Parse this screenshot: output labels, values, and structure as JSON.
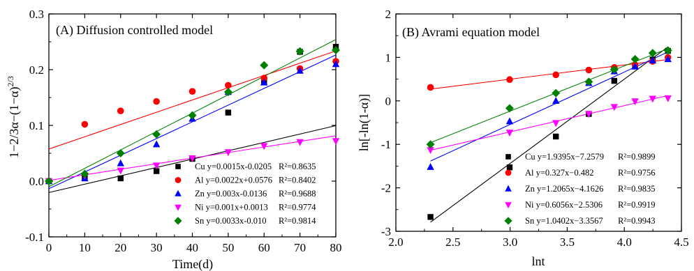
{
  "chart_data": [
    {
      "type": "scatter",
      "title": "(A) Diffusion controlled model",
      "xlabel": "Time(d)",
      "ylabel": "1−2/3α−(1−α)",
      "ylabel_sup": "2/3",
      "xlim": [
        0,
        80
      ],
      "ylim": [
        -0.1,
        0.3
      ],
      "xticks": [
        "0",
        "10",
        "20",
        "30",
        "40",
        "50",
        "60",
        "70",
        "80"
      ],
      "yticks": [
        "-0.1",
        "0.0",
        "0.1",
        "0.2",
        "0.3"
      ],
      "legend_position": "bottom-right",
      "series": [
        {
          "name": "Cu",
          "eq": "y=0.0015x-0.0205",
          "r2": "R²=0.8635",
          "color": "#000000",
          "marker": "square",
          "x": [
            0,
            10,
            20,
            30,
            40,
            50,
            60,
            70,
            80
          ],
          "values": [
            0.0,
            0.006,
            0.005,
            0.018,
            0.04,
            0.123,
            0.178,
            0.232,
            0.241
          ],
          "fit": {
            "slope": 0.0015,
            "intercept": -0.0205
          }
        },
        {
          "name": "Al",
          "eq": "y=0.0022x+0.0576",
          "r2": "R²=0.8402",
          "color": "#ff0000",
          "marker": "circle",
          "x": [
            0,
            10,
            20,
            30,
            40,
            50,
            60,
            70,
            80
          ],
          "values": [
            0.0,
            0.102,
            0.126,
            0.143,
            0.161,
            0.172,
            0.185,
            0.202,
            0.215
          ],
          "fit": {
            "slope": 0.0022,
            "intercept": 0.0576
          }
        },
        {
          "name": "Zn",
          "eq": "y=0.003x-0.0136",
          "r2": "R²=0.9688",
          "color": "#0000ff",
          "marker": "triangle-up",
          "x": [
            0,
            10,
            20,
            30,
            40,
            50,
            60,
            70,
            80
          ],
          "values": [
            0.0,
            0.005,
            0.032,
            0.066,
            0.112,
            0.16,
            0.177,
            0.198,
            0.21
          ],
          "fit": {
            "slope": 0.003,
            "intercept": -0.0136
          }
        },
        {
          "name": "Ni",
          "eq": "y=0.001x+0.0013",
          "r2": "R²=0.9774",
          "color": "#ff00ff",
          "marker": "triangle-down",
          "x": [
            0,
            10,
            20,
            30,
            40,
            50,
            60,
            70,
            80
          ],
          "values": [
            0.0,
            0.01,
            0.019,
            0.028,
            0.041,
            0.052,
            0.063,
            0.07,
            0.072
          ],
          "fit": {
            "slope": 0.001,
            "intercept": 0.0013
          }
        },
        {
          "name": "Sn",
          "eq": "y=0.0033x-0.010",
          "r2": "R²=0.9814",
          "color": "#008000",
          "marker": "diamond",
          "x": [
            0,
            10,
            20,
            30,
            40,
            50,
            60,
            70,
            80
          ],
          "values": [
            0.0,
            0.013,
            0.05,
            0.084,
            0.118,
            0.16,
            0.208,
            0.233,
            0.235
          ],
          "fit": {
            "slope": 0.0033,
            "intercept": -0.01
          }
        }
      ]
    },
    {
      "type": "scatter",
      "title": "(B) Avrami equation model",
      "xlabel": "lnt",
      "ylabel": "ln[-ln(1-α)]",
      "xlim": [
        2.0,
        4.5
      ],
      "ylim": [
        -3,
        2
      ],
      "xticks": [
        "2.0",
        "2.5",
        "3.0",
        "3.5",
        "4.0",
        "4.5"
      ],
      "yticks": [
        "-3",
        "-2",
        "-1",
        "0",
        "1",
        "2"
      ],
      "legend_position": "bottom-right",
      "series": [
        {
          "name": "Cu",
          "eq": "y=1.9395x−7.2579",
          "r2": "R²=0.9899",
          "color": "#000000",
          "marker": "square",
          "x": [
            2.303,
            2.996,
            3.401,
            3.689,
            3.912,
            4.094,
            4.248,
            4.382
          ],
          "values": [
            -2.67,
            -1.53,
            -0.82,
            -0.3,
            0.46,
            0.8,
            0.95,
            1.15
          ],
          "fit": {
            "slope": 1.9395,
            "intercept": -7.2579
          }
        },
        {
          "name": "Al",
          "eq": "y=0.327x−0.482",
          "r2": "R²=0.9756",
          "color": "#ff0000",
          "marker": "circle",
          "x": [
            2.303,
            2.996,
            3.401,
            3.689,
            3.912,
            4.094,
            4.248,
            4.382
          ],
          "values": [
            0.31,
            0.49,
            0.6,
            0.71,
            0.77,
            0.83,
            0.91,
            1.0
          ],
          "fit": {
            "slope": 0.327,
            "intercept": -0.482
          }
        },
        {
          "name": "Zn",
          "eq": "y=1.2065x−4.1626",
          "r2": "R²=0.9835",
          "color": "#0000ff",
          "marker": "triangle-up",
          "x": [
            2.303,
            2.996,
            3.401,
            3.689,
            3.912,
            4.094,
            4.248,
            4.382
          ],
          "values": [
            -1.52,
            -0.47,
            0.0,
            0.41,
            0.68,
            0.79,
            0.93,
            0.96
          ],
          "fit": {
            "slope": 1.2065,
            "intercept": -4.1626
          }
        },
        {
          "name": "Ni",
          "eq": "y=0.6056x−2.5306",
          "r2": "R²=0.9919",
          "color": "#ff00ff",
          "marker": "triangle-down",
          "x": [
            2.303,
            2.996,
            3.401,
            3.689,
            3.912,
            4.094,
            4.248,
            4.382
          ],
          "values": [
            -1.13,
            -0.73,
            -0.51,
            -0.3,
            -0.14,
            -0.01,
            0.05,
            0.06
          ],
          "fit": {
            "slope": 0.6056,
            "intercept": -2.5306
          }
        },
        {
          "name": "Sn",
          "eq": "y=1.0402x−3.3567",
          "r2": "R²=0.9943",
          "color": "#008000",
          "marker": "diamond",
          "x": [
            2.303,
            2.996,
            3.401,
            3.689,
            3.912,
            4.094,
            4.248,
            4.382
          ],
          "values": [
            -1.0,
            -0.17,
            0.18,
            0.44,
            0.72,
            0.96,
            1.1,
            1.16
          ],
          "fit": {
            "slope": 1.0402,
            "intercept": -3.3567
          }
        }
      ]
    }
  ]
}
